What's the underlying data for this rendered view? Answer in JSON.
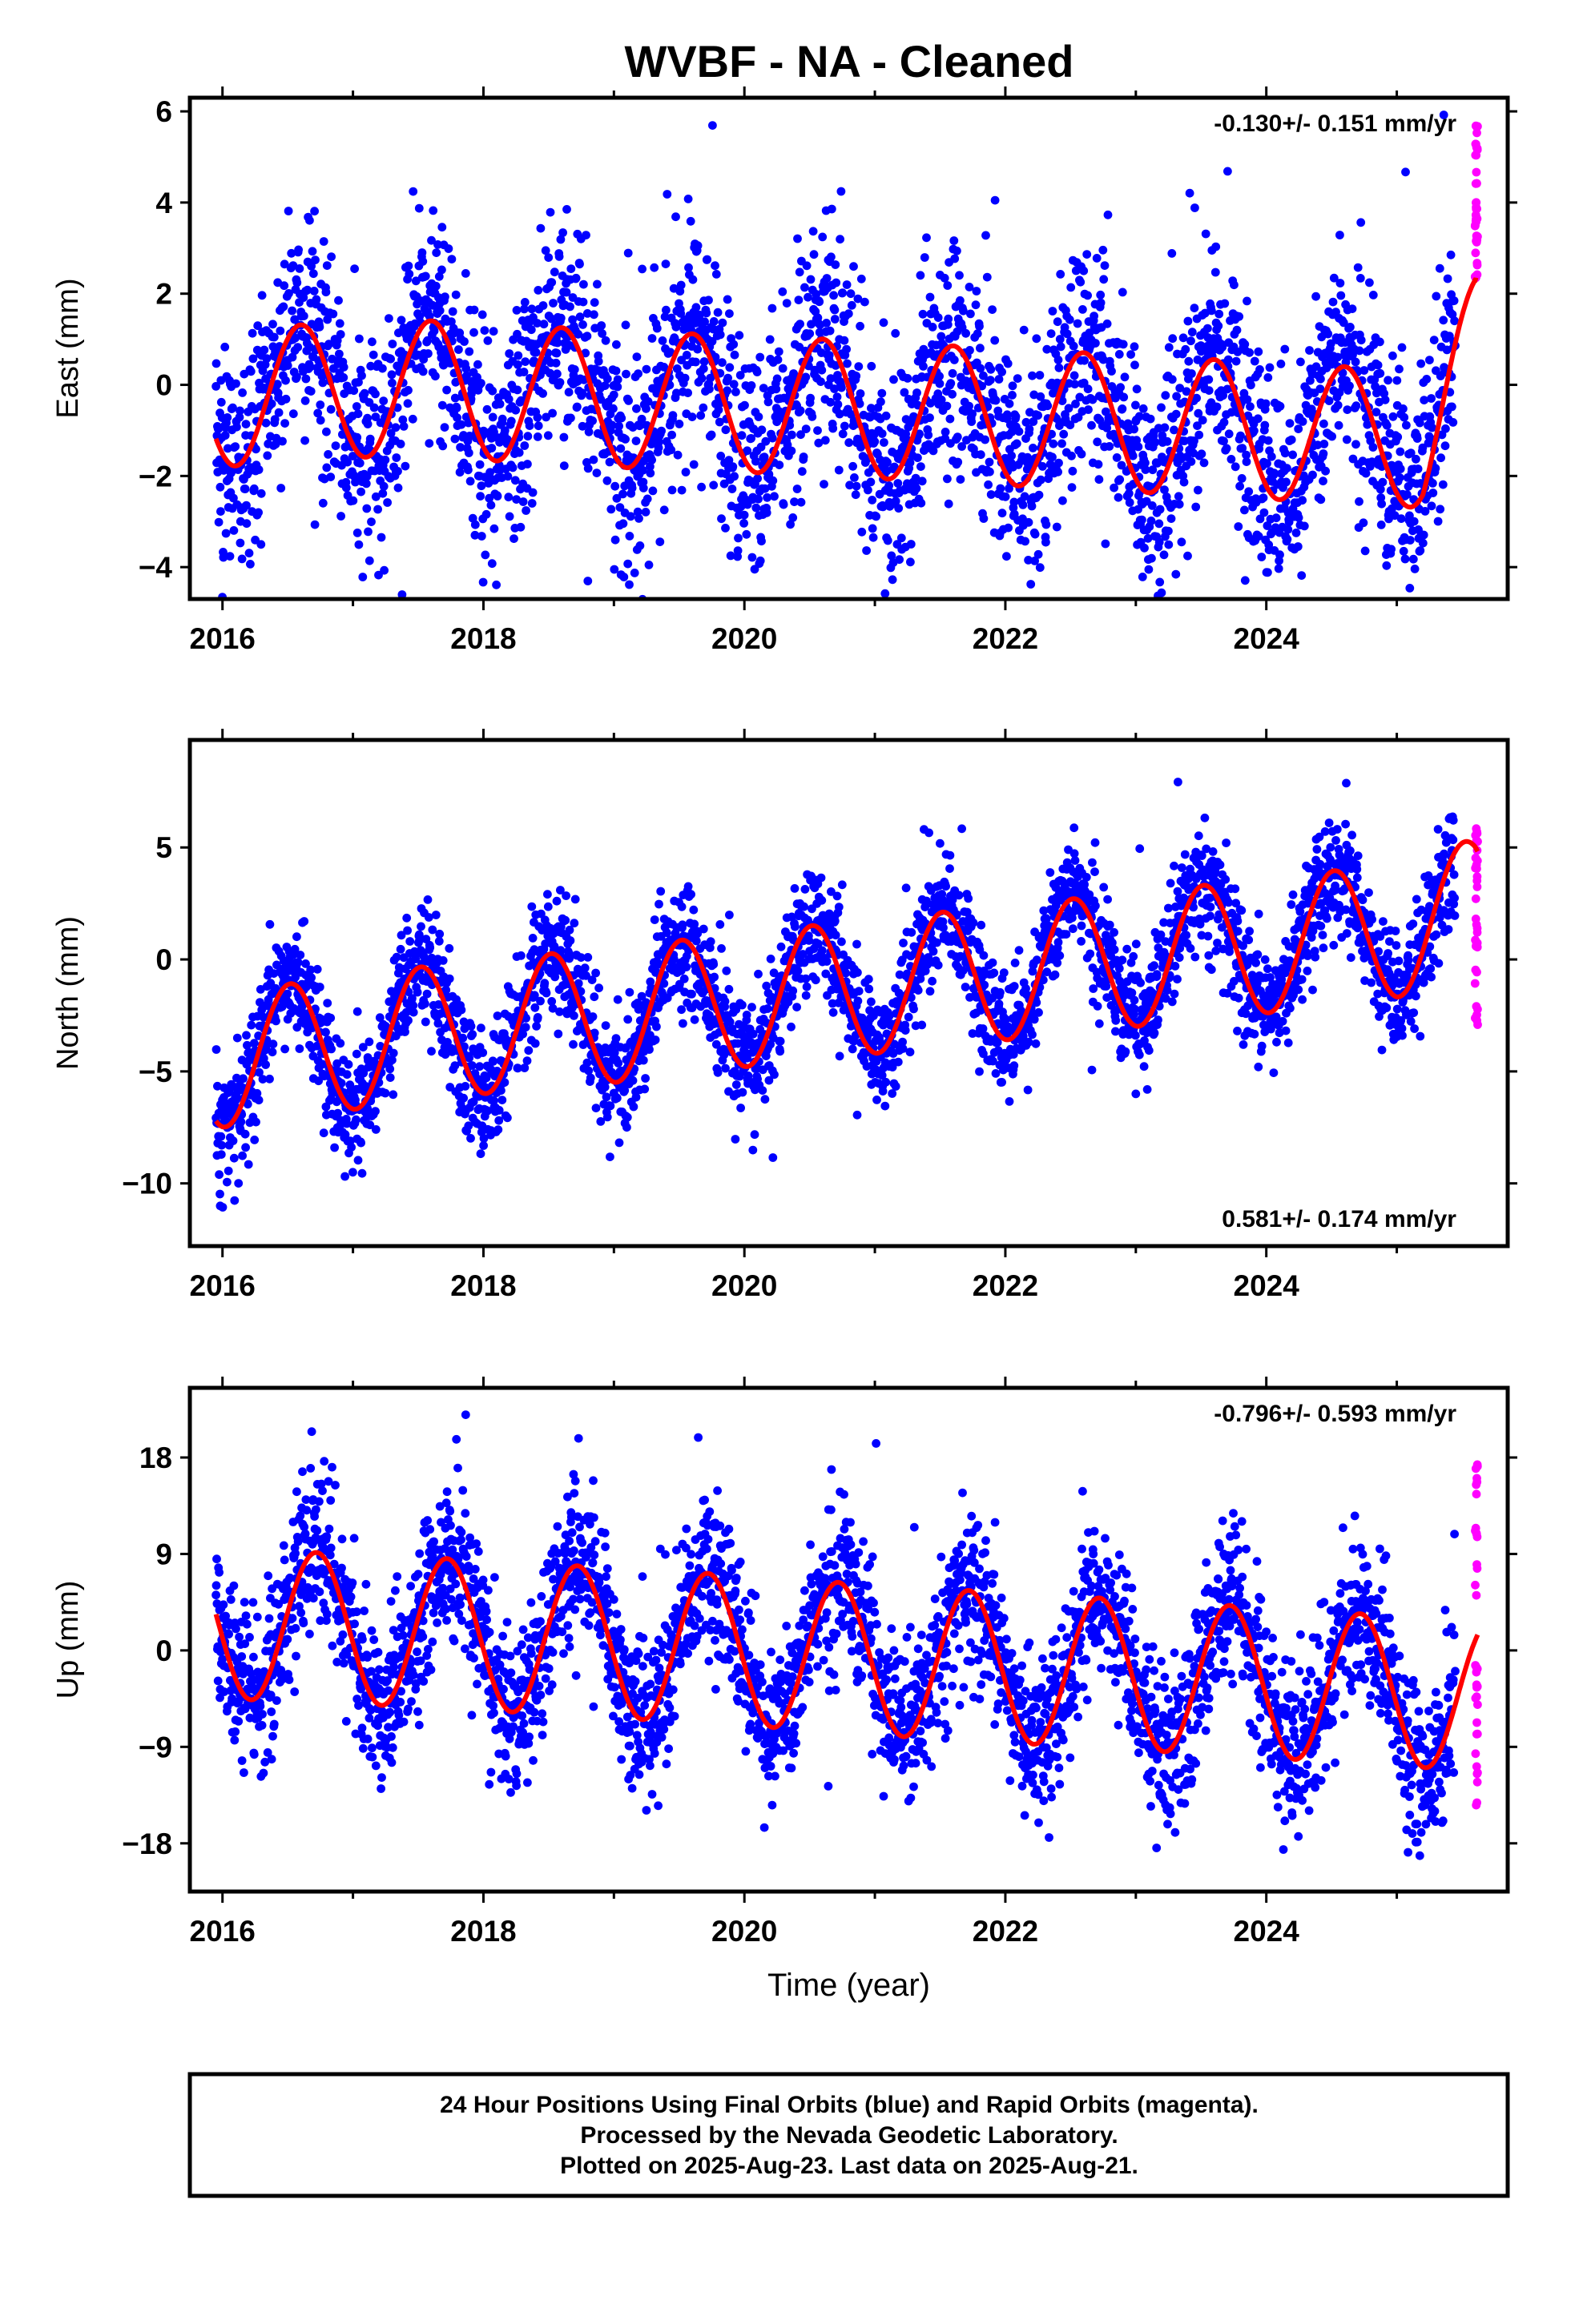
{
  "title": "WVBF  - NA - Cleaned",
  "colors": {
    "final": "#0000ff",
    "rapid": "#ff00ff",
    "model": "#ff0000",
    "frame": "#000000"
  },
  "chart_data": [
    {
      "type": "scatter",
      "xlim": [
        2015.75,
        2025.85
      ],
      "ylim": [
        -4.7,
        6.3
      ],
      "yticks": [
        -4,
        -2,
        0,
        2,
        4,
        6
      ],
      "xticks": [
        2016,
        2018,
        2020,
        2022,
        2024
      ],
      "ylabel": "East (mm)",
      "rate_label": "-0.130+/- 0.151 mm/yr",
      "rate_pos": "top-right",
      "amplitude": 1.5,
      "phase": 0.6,
      "scatter_sd": 1.2,
      "model_breaks": [
        {
          "t": 2016.0,
          "v": -0.3
        },
        {
          "t": 2017.3,
          "v": -0.05
        },
        {
          "t": 2018.3,
          "v": -0.2
        },
        {
          "t": 2019.3,
          "v": -0.35
        },
        {
          "t": 2020.3,
          "v": -0.45
        },
        {
          "t": 2021.3,
          "v": -0.6
        },
        {
          "t": 2022.3,
          "v": -0.75
        },
        {
          "t": 2023.3,
          "v": -0.9
        },
        {
          "t": 2024.3,
          "v": -1.05
        },
        {
          "t": 2025.2,
          "v": -1.2
        },
        {
          "t": 2025.6,
          "v": 0.8
        }
      ],
      "rapid_range": [
        2.3,
        5.8
      ],
      "series": [
        {
          "name": "Final Orbits (blue)",
          "role": "final",
          "x_start": 2015.95,
          "x_end": 2025.45
        },
        {
          "name": "Rapid Orbits (magenta)",
          "role": "rapid",
          "x_start": 2025.45,
          "x_end": 2025.62
        },
        {
          "name": "model",
          "role": "model"
        }
      ]
    },
    {
      "type": "scatter",
      "xlim": [
        2015.75,
        2025.85
      ],
      "ylim": [
        -12.8,
        9.8
      ],
      "yticks": [
        -10,
        -5,
        0,
        5
      ],
      "xticks": [
        2016,
        2018,
        2020,
        2022,
        2024
      ],
      "ylabel": "North (mm)",
      "rate_label": "0.581+/- 0.174 mm/yr",
      "rate_pos": "bottom-right",
      "amplitude": 3.0,
      "phase": 0.52,
      "scatter_sd": 1.3,
      "model_breaks": [
        {
          "t": 2016.0,
          "v": -4.5
        },
        {
          "t": 2017.0,
          "v": -3.7
        },
        {
          "t": 2018.0,
          "v": -3.0
        },
        {
          "t": 2019.0,
          "v": -2.5
        },
        {
          "t": 2020.0,
          "v": -1.8
        },
        {
          "t": 2021.0,
          "v": -1.2
        },
        {
          "t": 2022.0,
          "v": -0.6
        },
        {
          "t": 2023.0,
          "v": 0.0
        },
        {
          "t": 2024.0,
          "v": 0.6
        },
        {
          "t": 2025.0,
          "v": 1.3
        },
        {
          "t": 2025.6,
          "v": 2.4
        }
      ],
      "rapid_range": [
        -3.0,
        6.0
      ],
      "series": [
        {
          "name": "Final Orbits (blue)",
          "role": "final",
          "x_start": 2015.95,
          "x_end": 2025.45
        },
        {
          "name": "Rapid Orbits (magenta)",
          "role": "rapid",
          "x_start": 2025.45,
          "x_end": 2025.62
        },
        {
          "name": "model",
          "role": "model"
        }
      ]
    },
    {
      "type": "scatter",
      "xlim": [
        2015.75,
        2025.85
      ],
      "ylim": [
        -22.5,
        24.5
      ],
      "yticks": [
        -18,
        -9,
        0,
        9,
        18
      ],
      "xticks": [
        2016,
        2018,
        2020,
        2022,
        2024
      ],
      "ylabel": "Up (mm)",
      "xlabel": "Time (year)",
      "rate_label": "-0.796+/- 0.593 mm/yr",
      "rate_pos": "top-right",
      "amplitude": 7.0,
      "phase": 0.72,
      "scatter_sd": 3.6,
      "model_breaks": [
        {
          "t": 2016.0,
          "v": 2.5
        },
        {
          "t": 2017.0,
          "v": 2.0
        },
        {
          "t": 2018.0,
          "v": 1.4
        },
        {
          "t": 2019.0,
          "v": 0.7
        },
        {
          "t": 2020.0,
          "v": 0.0
        },
        {
          "t": 2021.0,
          "v": -0.9
        },
        {
          "t": 2022.0,
          "v": -1.6
        },
        {
          "t": 2023.0,
          "v": -2.3
        },
        {
          "t": 2024.0,
          "v": -3.0
        },
        {
          "t": 2025.0,
          "v": -3.8
        },
        {
          "t": 2025.6,
          "v": -4.2
        }
      ],
      "rapid_range": [
        -15.0,
        18.0
      ],
      "series": [
        {
          "name": "Final Orbits (blue)",
          "role": "final",
          "x_start": 2015.95,
          "x_end": 2025.45
        },
        {
          "name": "Rapid Orbits (magenta)",
          "role": "rapid",
          "x_start": 2025.45,
          "x_end": 2025.62
        },
        {
          "name": "model",
          "role": "model"
        }
      ]
    }
  ],
  "footer": {
    "line1": "24 Hour Positions Using Final Orbits (blue) and Rapid Orbits (magenta).",
    "line2": "Processed by the Nevada Geodetic Laboratory.",
    "line3": "Plotted on 2025-Aug-23. Last data on 2025-Aug-21."
  }
}
